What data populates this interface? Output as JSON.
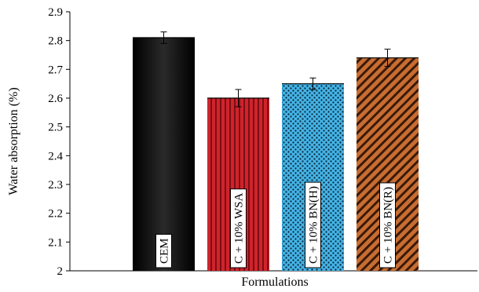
{
  "chart_data": {
    "type": "bar",
    "categories": [
      "CEM",
      "C + 10% WSA",
      "C + 10% BN(H)",
      "C + 10% BN(R)"
    ],
    "values": [
      2.81,
      2.6,
      2.65,
      2.74
    ],
    "errors": [
      0.02,
      0.03,
      0.02,
      0.03
    ],
    "xlabel": "Formulations",
    "ylabel": "Water absorption (%)",
    "ylim": [
      2,
      2.9
    ],
    "yticks": [
      "2",
      "2.1",
      "2.2",
      "2.3",
      "2.4",
      "2.5",
      "2.6",
      "2.7",
      "2.8",
      "2.9"
    ],
    "bar_styles": [
      {
        "pattern": "solid",
        "color": "#000000"
      },
      {
        "pattern": "vertical-stripes",
        "color": "#c8202a"
      },
      {
        "pattern": "dots",
        "color": "#3fa9dc"
      },
      {
        "pattern": "diagonal-stripes",
        "color": "#c0682e"
      }
    ],
    "grid": false,
    "legend": "none"
  }
}
